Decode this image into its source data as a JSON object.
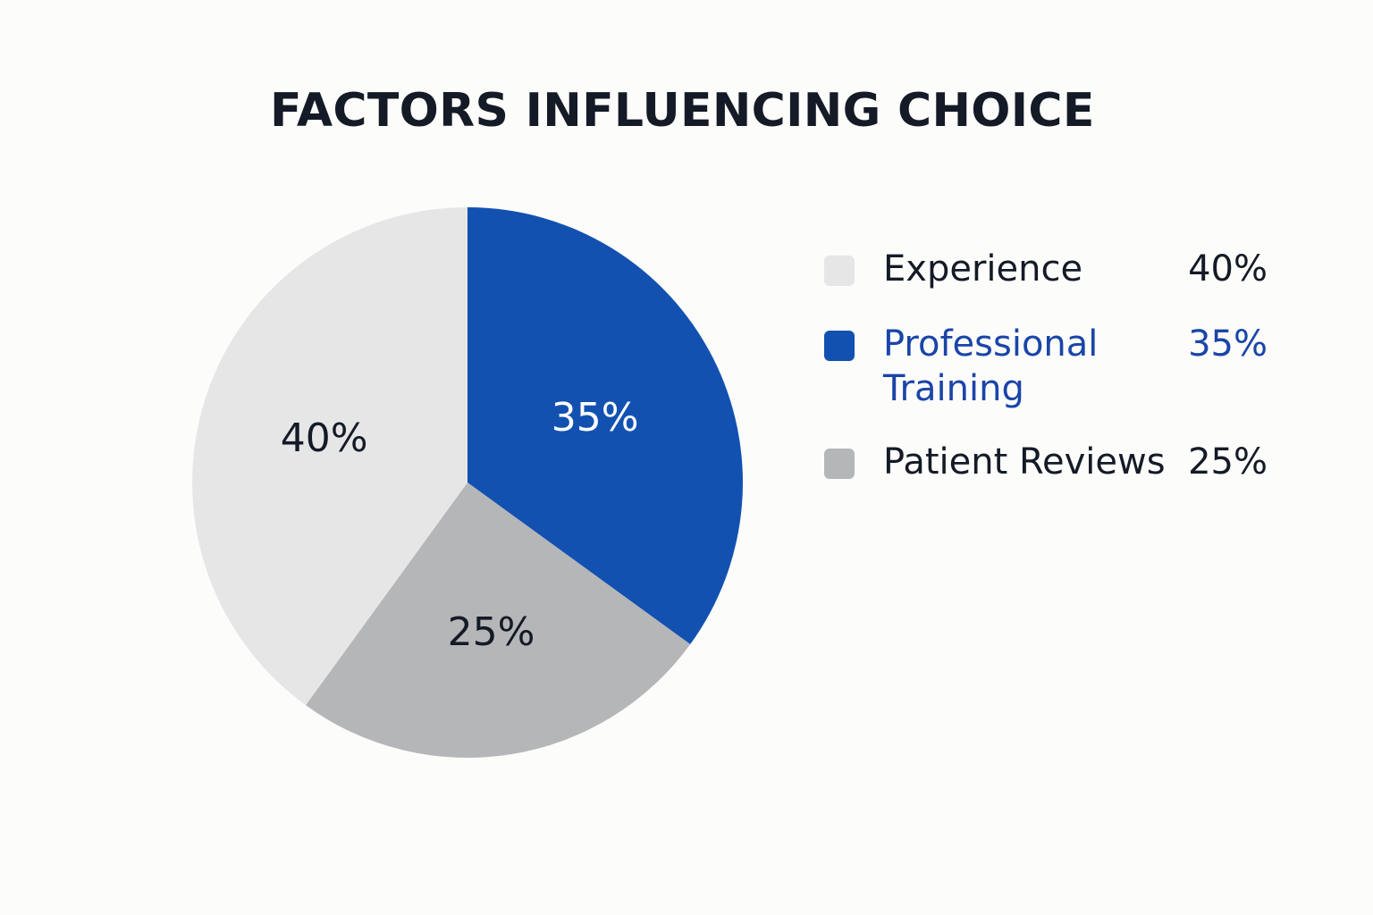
{
  "chart_data": {
    "type": "pie",
    "title": "FACTORS INFLUENCING CHOICE",
    "categories": [
      "Experience",
      "Professional Training",
      "Patient Reviews"
    ],
    "values": [
      40,
      35,
      25
    ],
    "slice_labels": [
      "40%",
      "35%",
      "25%"
    ],
    "legend_values": [
      "40%",
      "35%",
      "25%"
    ],
    "unit": "%",
    "legend_placement": "right",
    "colors": [
      "#e6e6e7",
      "#1351b1",
      "#b5b6b8"
    ],
    "label_colors": [
      "#141a26",
      "#ffffff",
      "#141a26"
    ],
    "legend_text_colors": [
      "#141a26",
      "#1a45a8",
      "#141a26"
    ]
  }
}
